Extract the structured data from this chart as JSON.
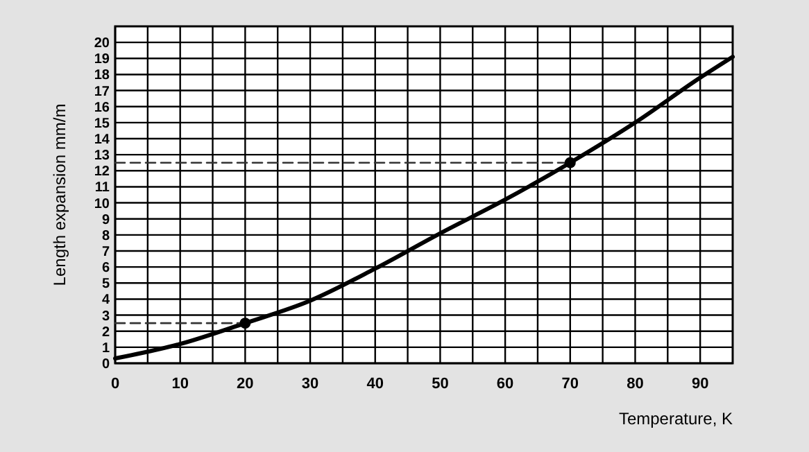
{
  "chart_data": {
    "type": "line",
    "xlabel": "Temperature, K",
    "ylabel": "Length expansion mm/m",
    "xlim": [
      0,
      95
    ],
    "ylim": [
      0,
      21
    ],
    "xticks": [
      0,
      {
        "value": 5,
        "label": null
      },
      10,
      {
        "value": 15,
        "label": null
      },
      20,
      {
        "value": 25,
        "label": null
      },
      30,
      {
        "value": 35,
        "label": null
      },
      40,
      {
        "value": 45,
        "label": null
      },
      50,
      {
        "value": 55,
        "label": null
      },
      60,
      {
        "value": 65,
        "label": null
      },
      70,
      {
        "value": 75,
        "label": null
      },
      80,
      {
        "value": 85,
        "label": null
      },
      90
    ],
    "yticks": [
      0,
      1,
      2,
      3,
      4,
      5,
      6,
      7,
      8,
      9,
      10,
      11,
      12,
      13,
      14,
      15,
      16,
      17,
      18,
      19,
      20
    ],
    "grid": true,
    "series": [
      {
        "type": "line",
        "color": "#000000",
        "marker": "none",
        "line_style": "solid",
        "x": [
          0,
          10,
          20,
          30,
          40,
          50,
          60,
          70,
          80,
          90,
          95
        ],
        "values": [
          0.3,
          1.2,
          2.5,
          3.9,
          5.9,
          8.1,
          10.2,
          12.5,
          15.0,
          17.8,
          19.1
        ]
      },
      {
        "type": "line",
        "color": "#333333",
        "marker": "none",
        "line_style": "dashed",
        "x": [
          0,
          20
        ],
        "values": [
          2.5,
          2.5
        ]
      },
      {
        "type": "line",
        "color": "#333333",
        "marker": "none",
        "line_style": "dashed",
        "x": [
          0,
          70
        ],
        "values": [
          12.5,
          12.5
        ]
      },
      {
        "type": "scatter",
        "color": "#000000",
        "marker": "circle",
        "x": [
          20,
          70
        ],
        "values": [
          2.5,
          12.5
        ]
      }
    ]
  }
}
